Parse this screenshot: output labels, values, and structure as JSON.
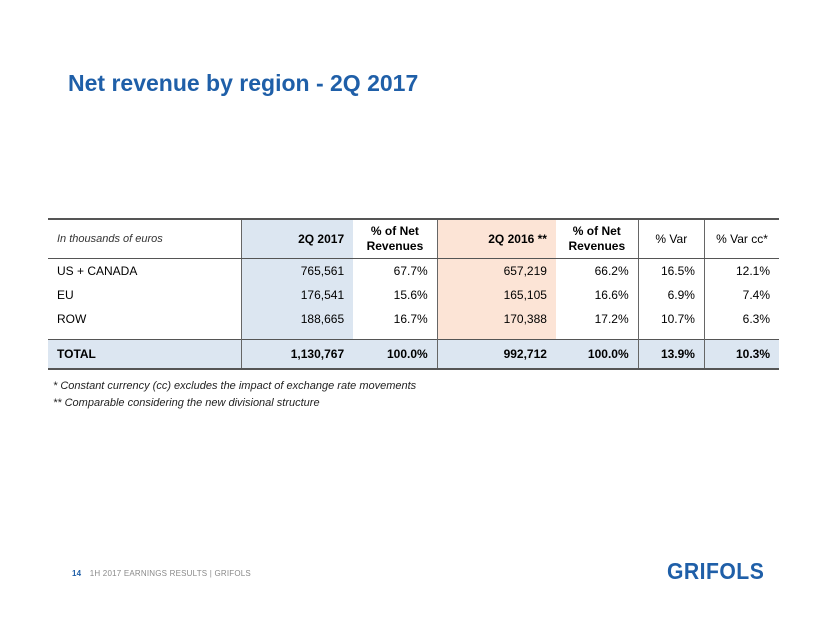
{
  "page": {
    "title": "Net revenue by region - 2Q 2017"
  },
  "table": {
    "headers": {
      "label": "In thousands of euros",
      "q2_2017": "2Q 2017",
      "pct_net_1": "% of Net Revenues",
      "q2_2016": "2Q 2016 **",
      "pct_net_2": "% of Net Revenues",
      "var": "% Var",
      "var_cc": "% Var cc*"
    },
    "rows": [
      {
        "label": "US + CANADA",
        "q2_2017": "765,561",
        "pct1": "67.7%",
        "q2_2016": "657,219",
        "pct2": "66.2%",
        "var": "16.5%",
        "var_cc": "12.1%"
      },
      {
        "label": "EU",
        "q2_2017": "176,541",
        "pct1": "15.6%",
        "q2_2016": "165,105",
        "pct2": "16.6%",
        "var": "6.9%",
        "var_cc": "7.4%"
      },
      {
        "label": "ROW",
        "q2_2017": "188,665",
        "pct1": "16.7%",
        "q2_2016": "170,388",
        "pct2": "17.2%",
        "var": "10.7%",
        "var_cc": "6.3%"
      }
    ],
    "total": {
      "label": "TOTAL",
      "q2_2017": "1,130,767",
      "pct1": "100.0%",
      "q2_2016": "992,712",
      "pct2": "100.0%",
      "var": "13.9%",
      "var_cc": "10.3%"
    }
  },
  "notes": {
    "note1": "* Constant currency (cc) excludes the impact of exchange rate movements",
    "note2": "** Comparable considering the new divisional structure"
  },
  "footer": {
    "page_number": "14",
    "text": "1H 2017 EARNINGS RESULTS | GRIFOLS"
  },
  "logo": {
    "text": "GRIFOLS"
  },
  "colors": {
    "accent": "#1f5fa8",
    "col_2017_bg": "#dce6f1",
    "col_2016_bg": "#fce4d6"
  }
}
